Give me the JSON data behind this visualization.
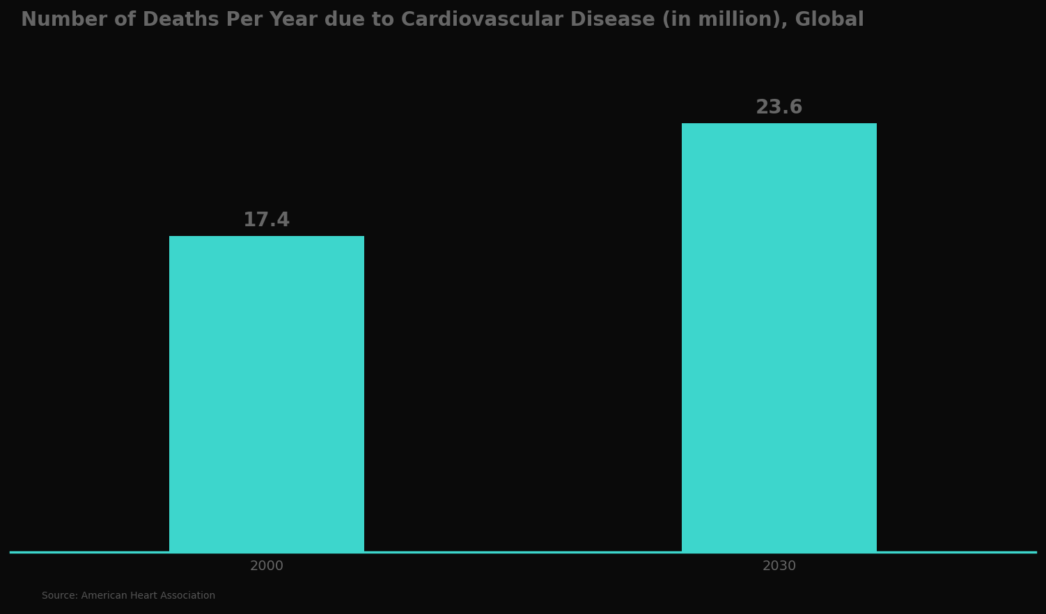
{
  "title": "Number of Deaths Per Year due to Cardiovascular Disease (in million), Global",
  "categories": [
    "2000",
    "2030"
  ],
  "values": [
    17.4,
    23.6
  ],
  "bar_color": "#3DD6CC",
  "background_color": "#0a0a0a",
  "title_color": "#666666",
  "label_color": "#666666",
  "tick_color": "#666666",
  "bar_label_fontsize": 20,
  "title_fontsize": 20,
  "xlabel_fontsize": 14,
  "source_text": "Source: American Heart Association",
  "ylim": [
    0,
    28
  ],
  "bar_width": 0.35,
  "xlim": [
    -0.5,
    1.5
  ]
}
